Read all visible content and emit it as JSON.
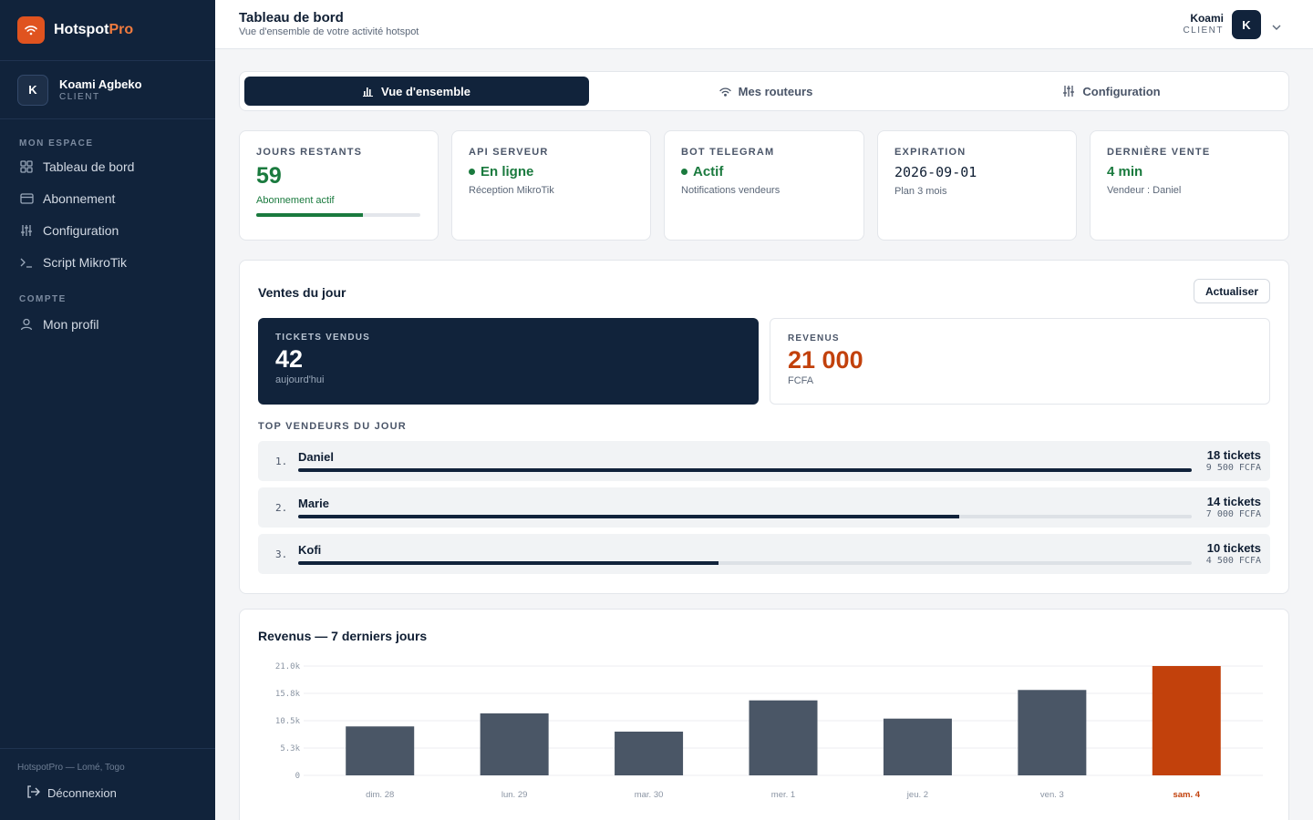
{
  "brand": {
    "name_main": "Hotspot",
    "name_accent": "Pro"
  },
  "sidebar": {
    "user": {
      "initial": "K",
      "name": "Koami Agbeko",
      "role": "CLIENT"
    },
    "section_main": "MON ESPACE",
    "items": [
      {
        "label": "Tableau de bord",
        "icon": "grid-icon"
      },
      {
        "label": "Abonnement",
        "icon": "card-icon"
      },
      {
        "label": "Configuration",
        "icon": "sliders-icon"
      },
      {
        "label": "Script MikroTik",
        "icon": "terminal-icon"
      }
    ],
    "section_account": "COMPTE",
    "account_items": [
      {
        "label": "Mon profil",
        "icon": "user-icon"
      }
    ],
    "footer_location": "HotspotPro — Lomé, Togo",
    "logout_label": "Déconnexion"
  },
  "header": {
    "title": "Tableau de bord",
    "subtitle": "Vue d'ensemble de votre activité hotspot",
    "user_name": "Koami",
    "user_role": "CLIENT",
    "user_initial": "K"
  },
  "tabs": [
    {
      "label": "Vue d'ensemble",
      "icon": "bar-chart-icon",
      "active": true
    },
    {
      "label": "Mes routeurs",
      "icon": "wifi-icon",
      "active": false
    },
    {
      "label": "Configuration",
      "icon": "sliders-icon",
      "active": false
    }
  ],
  "kpis": {
    "days": {
      "label": "JOURS RESTANTS",
      "value": "59",
      "sub": "Abonnement actif",
      "progress": 0.65
    },
    "api": {
      "label": "API SERVEUR",
      "value": "En ligne",
      "sub": "Réception MikroTik"
    },
    "bot": {
      "label": "BOT TELEGRAM",
      "value": "Actif",
      "sub": "Notifications vendeurs"
    },
    "expiration": {
      "label": "EXPIRATION",
      "value": "2026-09-01",
      "sub": "Plan 3 mois"
    },
    "last_sale": {
      "label": "DERNIÈRE VENTE",
      "value": "4 min",
      "sub": "Vendeur : Daniel"
    }
  },
  "sales": {
    "title": "Ventes du jour",
    "refresh_label": "Actualiser",
    "tickets": {
      "label": "TICKETS VENDUS",
      "value": "42",
      "sub": "aujourd'hui"
    },
    "revenue": {
      "label": "REVENUS",
      "value": "21 000",
      "sub": "FCFA"
    },
    "top_label": "TOP VENDEURS DU JOUR",
    "sellers": [
      {
        "rank": "1.",
        "name": "Daniel",
        "tickets": "18 tickets",
        "amount": "9 500 FCFA",
        "share": 1.0
      },
      {
        "rank": "2.",
        "name": "Marie",
        "tickets": "14 tickets",
        "amount": "7 000 FCFA",
        "share": 0.74
      },
      {
        "rank": "3.",
        "name": "Kofi",
        "tickets": "10 tickets",
        "amount": "4 500 FCFA",
        "share": 0.47
      }
    ]
  },
  "revenue_chart": {
    "title": "Revenus — 7 derniers jours"
  },
  "colors": {
    "accent": "#c2410c",
    "navy": "#11233b",
    "green": "#1a7a3e",
    "bar": "#4a5666"
  },
  "chart_data": {
    "type": "bar",
    "title": "Revenus — 7 derniers jours",
    "categories": [
      "dim. 28",
      "lun. 29",
      "mar. 30",
      "mer. 1",
      "jeu. 2",
      "ven. 3",
      "sam. 4"
    ],
    "values": [
      9400,
      11900,
      8400,
      14400,
      10900,
      16400,
      21000
    ],
    "highlight_index": 6,
    "yticks": [
      "0",
      "5.3k",
      "10.5k",
      "15.8k",
      "21.0k"
    ],
    "ylim": [
      0,
      21000
    ],
    "grid": true
  }
}
